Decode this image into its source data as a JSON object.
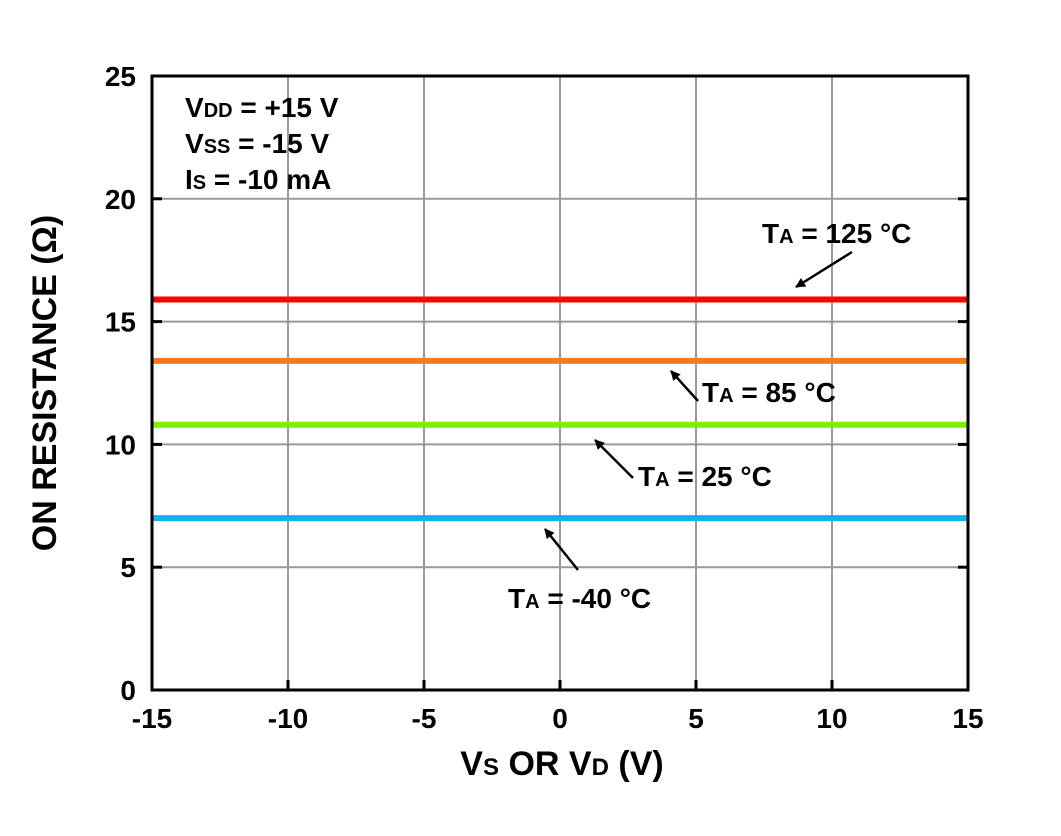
{
  "chart_data": {
    "type": "line",
    "xlabel": {
      "parts": [
        {
          "t": "V",
          "sub": false
        },
        {
          "t": "S",
          "sub": true
        },
        {
          "t": " OR V",
          "sub": false
        },
        {
          "t": "D",
          "sub": true
        },
        {
          "t": " (V)",
          "sub": false
        }
      ]
    },
    "ylabel": "ON RESISTANCE (Ω)",
    "xlim": [
      -15,
      15
    ],
    "ylim": [
      0,
      25
    ],
    "xticks": [
      -15,
      -10,
      -5,
      0,
      5,
      10,
      15
    ],
    "yticks": [
      0,
      5,
      10,
      15,
      20,
      25
    ],
    "grid": true,
    "conditions": [
      {
        "parts": [
          {
            "t": "V",
            "sub": false
          },
          {
            "t": "DD",
            "sub": true
          },
          {
            "t": " = +15 V",
            "sub": false
          }
        ]
      },
      {
        "parts": [
          {
            "t": "V",
            "sub": false
          },
          {
            "t": "SS",
            "sub": true
          },
          {
            "t": " = -15 V",
            "sub": false
          }
        ]
      },
      {
        "parts": [
          {
            "t": "I",
            "sub": false
          },
          {
            "t": "S",
            "sub": true
          },
          {
            "t": " = -10 mA",
            "sub": false
          }
        ]
      }
    ],
    "series": [
      {
        "color": "#ff0000",
        "x": [
          -15,
          15
        ],
        "y": [
          15.9,
          15.9
        ],
        "label": {
          "parts": [
            {
              "t": "T",
              "sub": false
            },
            {
              "t": "A",
              "sub": true
            },
            {
              "t": " = 125 °C",
              "sub": false
            }
          ]
        }
      },
      {
        "color": "#f47a20",
        "x": [
          -15,
          15
        ],
        "y": [
          13.4,
          13.4
        ],
        "label": {
          "parts": [
            {
              "t": "T",
              "sub": false
            },
            {
              "t": "A",
              "sub": true
            },
            {
              "t": " = 85 °C",
              "sub": false
            }
          ]
        }
      },
      {
        "color": "#7cf000",
        "x": [
          -15,
          15
        ],
        "y": [
          10.8,
          10.8
        ],
        "label": {
          "parts": [
            {
              "t": "T",
              "sub": false
            },
            {
              "t": "A",
              "sub": true
            },
            {
              "t": " = 25 °C",
              "sub": false
            }
          ]
        }
      },
      {
        "color": "#0fb4ee",
        "x": [
          -15,
          15
        ],
        "y": [
          7.0,
          7.0
        ],
        "label": {
          "parts": [
            {
              "t": "T",
              "sub": false
            },
            {
              "t": "A",
              "sub": true
            },
            {
              "t": " = -40 °C",
              "sub": false
            }
          ]
        }
      }
    ]
  }
}
